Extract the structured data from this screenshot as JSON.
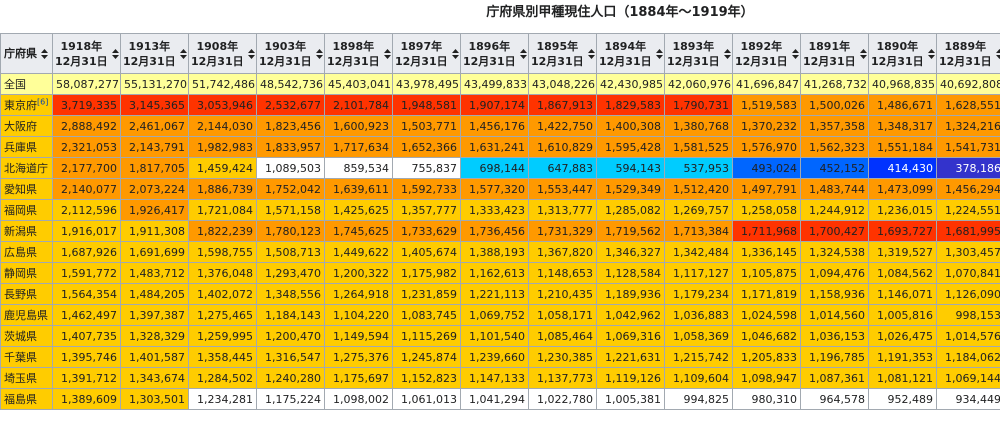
{
  "caption": "庁府県別甲種現住人口（1884年〜1919年）",
  "header": {
    "pref_label": "庁府県",
    "year_cols": [
      {
        "year": "1918年",
        "date": "12月31日"
      },
      {
        "year": "1913年",
        "date": "12月31日"
      },
      {
        "year": "1908年",
        "date": "12月31日"
      },
      {
        "year": "1903年",
        "date": "12月31日"
      },
      {
        "year": "1898年",
        "date": "12月31日"
      },
      {
        "year": "1897年",
        "date": "12月31日"
      },
      {
        "year": "1896年",
        "date": "12月31日"
      },
      {
        "year": "1895年",
        "date": "12月31日"
      },
      {
        "year": "1894年",
        "date": "12月31日"
      },
      {
        "year": "1893年",
        "date": "12月31日"
      },
      {
        "year": "1892年",
        "date": "12月31日"
      },
      {
        "year": "1891年",
        "date": "12月31日"
      },
      {
        "year": "1890年",
        "date": "12月31日"
      },
      {
        "year": "1889年",
        "date": "12月31日"
      }
    ]
  },
  "colors": {
    "total": "#ffff99",
    "o": "#ff9900",
    "y": "#ffcc00",
    "r": "#ff3300",
    "w": "#ffffff",
    "c": "#00ccff",
    "b": "#0066ff",
    "d": "#0033ff",
    "k": "#3333cc",
    "pref_bg": "#ffcc00"
  },
  "rows": [
    {
      "pref": "全国",
      "pref_color": "total",
      "note": "",
      "values": [
        "58,087,277",
        "55,131,270",
        "51,742,486",
        "48,542,736",
        "45,403,041",
        "43,978,495",
        "43,499,833",
        "43,048,226",
        "42,430,985",
        "42,060,976",
        "41,696,847",
        "41,268,732",
        "40,968,835",
        "40,692,808"
      ],
      "colors": [
        "total",
        "total",
        "total",
        "total",
        "total",
        "total",
        "total",
        "total",
        "total",
        "total",
        "total",
        "total",
        "total",
        "total"
      ]
    },
    {
      "pref": "東京府",
      "pref_color": "y",
      "note": "[6]",
      "values": [
        "3,719,335",
        "3,145,365",
        "3,053,946",
        "2,532,677",
        "2,101,784",
        "1,948,581",
        "1,907,174",
        "1,867,913",
        "1,829,583",
        "1,790,731",
        "1,519,583",
        "1,500,026",
        "1,486,671",
        "1,628,551"
      ],
      "colors": [
        "r",
        "r",
        "r",
        "r",
        "r",
        "r",
        "r",
        "r",
        "r",
        "r",
        "o",
        "o",
        "o",
        "o"
      ]
    },
    {
      "pref": "大阪府",
      "pref_color": "y",
      "note": "",
      "values": [
        "2,888,492",
        "2,461,067",
        "2,144,030",
        "1,823,456",
        "1,600,923",
        "1,503,771",
        "1,456,176",
        "1,422,750",
        "1,400,308",
        "1,380,768",
        "1,370,232",
        "1,357,358",
        "1,348,317",
        "1,324,216"
      ],
      "colors": [
        "o",
        "o",
        "o",
        "o",
        "o",
        "o",
        "o",
        "o",
        "o",
        "o",
        "o",
        "o",
        "o",
        "o"
      ]
    },
    {
      "pref": "兵庫県",
      "pref_color": "y",
      "note": "",
      "values": [
        "2,321,053",
        "2,143,791",
        "1,982,983",
        "1,833,957",
        "1,717,634",
        "1,652,366",
        "1,631,241",
        "1,610,829",
        "1,595,428",
        "1,581,525",
        "1,576,970",
        "1,562,323",
        "1,551,184",
        "1,541,731"
      ],
      "colors": [
        "o",
        "o",
        "o",
        "o",
        "o",
        "o",
        "o",
        "o",
        "o",
        "o",
        "o",
        "o",
        "o",
        "o"
      ]
    },
    {
      "pref": "北海道庁",
      "pref_color": "y",
      "note": "",
      "values": [
        "2,177,700",
        "1,817,705",
        "1,459,424",
        "1,089,503",
        "859,534",
        "755,837",
        "698,144",
        "647,883",
        "594,143",
        "537,953",
        "493,024",
        "452,152",
        "414,430",
        "378,186"
      ],
      "colors": [
        "o",
        "o",
        "y",
        "w",
        "w",
        "w",
        "c",
        "c",
        "c",
        "c",
        "b",
        "b",
        "d",
        "k"
      ]
    },
    {
      "pref": "愛知県",
      "pref_color": "y",
      "note": "",
      "values": [
        "2,140,077",
        "2,073,224",
        "1,886,739",
        "1,752,042",
        "1,639,611",
        "1,592,733",
        "1,577,320",
        "1,553,447",
        "1,529,349",
        "1,512,420",
        "1,497,791",
        "1,483,744",
        "1,473,099",
        "1,456,294"
      ],
      "colors": [
        "o",
        "o",
        "o",
        "o",
        "o",
        "o",
        "o",
        "o",
        "o",
        "o",
        "o",
        "o",
        "o",
        "o"
      ]
    },
    {
      "pref": "福岡県",
      "pref_color": "y",
      "note": "",
      "values": [
        "2,112,596",
        "1,926,417",
        "1,721,084",
        "1,571,158",
        "1,425,625",
        "1,357,777",
        "1,333,423",
        "1,313,777",
        "1,285,082",
        "1,269,757",
        "1,258,058",
        "1,244,912",
        "1,236,015",
        "1,224,551"
      ],
      "colors": [
        "y",
        "o",
        "y",
        "y",
        "y",
        "y",
        "y",
        "y",
        "y",
        "y",
        "y",
        "y",
        "y",
        "y"
      ]
    },
    {
      "pref": "新潟県",
      "pref_color": "y",
      "note": "",
      "values": [
        "1,916,017",
        "1,911,308",
        "1,822,239",
        "1,780,123",
        "1,745,625",
        "1,733,629",
        "1,736,456",
        "1,731,329",
        "1,719,562",
        "1,713,384",
        "1,711,968",
        "1,700,427",
        "1,693,727",
        "1,681,995"
      ],
      "colors": [
        "y",
        "y",
        "o",
        "o",
        "o",
        "o",
        "o",
        "o",
        "o",
        "o",
        "r",
        "r",
        "r",
        "r"
      ]
    },
    {
      "pref": "広島県",
      "pref_color": "y",
      "note": "",
      "values": [
        "1,687,926",
        "1,691,699",
        "1,598,755",
        "1,508,713",
        "1,449,622",
        "1,405,674",
        "1,388,193",
        "1,367,820",
        "1,346,327",
        "1,342,484",
        "1,336,145",
        "1,324,538",
        "1,319,527",
        "1,303,457"
      ],
      "colors": [
        "y",
        "y",
        "y",
        "y",
        "y",
        "y",
        "y",
        "y",
        "y",
        "y",
        "y",
        "y",
        "y",
        "y"
      ]
    },
    {
      "pref": "静岡県",
      "pref_color": "y",
      "note": "",
      "values": [
        "1,591,772",
        "1,483,712",
        "1,376,048",
        "1,293,470",
        "1,200,322",
        "1,175,982",
        "1,162,613",
        "1,148,653",
        "1,128,584",
        "1,117,127",
        "1,105,875",
        "1,094,476",
        "1,084,562",
        "1,070,841"
      ],
      "colors": [
        "y",
        "y",
        "y",
        "y",
        "y",
        "y",
        "y",
        "y",
        "y",
        "y",
        "y",
        "y",
        "y",
        "y"
      ]
    },
    {
      "pref": "長野県",
      "pref_color": "y",
      "note": "",
      "values": [
        "1,564,354",
        "1,484,205",
        "1,402,072",
        "1,348,556",
        "1,264,918",
        "1,231,859",
        "1,221,113",
        "1,210,435",
        "1,189,936",
        "1,179,234",
        "1,171,819",
        "1,158,936",
        "1,146,071",
        "1,126,090"
      ],
      "colors": [
        "y",
        "y",
        "y",
        "y",
        "y",
        "y",
        "y",
        "y",
        "y",
        "y",
        "y",
        "y",
        "y",
        "y"
      ]
    },
    {
      "pref": "鹿児島県",
      "pref_color": "y",
      "note": "",
      "values": [
        "1,462,497",
        "1,397,387",
        "1,275,465",
        "1,184,143",
        "1,104,220",
        "1,083,745",
        "1,069,752",
        "1,058,171",
        "1,042,962",
        "1,036,883",
        "1,024,598",
        "1,014,560",
        "1,005,816",
        "998,153"
      ],
      "colors": [
        "y",
        "y",
        "y",
        "y",
        "y",
        "y",
        "y",
        "y",
        "y",
        "y",
        "y",
        "y",
        "y",
        "y"
      ]
    },
    {
      "pref": "茨城県",
      "pref_color": "y",
      "note": "",
      "values": [
        "1,407,735",
        "1,328,329",
        "1,259,995",
        "1,200,470",
        "1,149,594",
        "1,115,269",
        "1,101,540",
        "1,085,464",
        "1,069,316",
        "1,058,369",
        "1,046,682",
        "1,036,153",
        "1,026,475",
        "1,014,576"
      ],
      "colors": [
        "y",
        "y",
        "y",
        "y",
        "y",
        "y",
        "y",
        "y",
        "y",
        "y",
        "y",
        "y",
        "y",
        "y"
      ]
    },
    {
      "pref": "千葉県",
      "pref_color": "y",
      "note": "",
      "values": [
        "1,395,746",
        "1,401,587",
        "1,358,445",
        "1,316,547",
        "1,275,376",
        "1,245,874",
        "1,239,660",
        "1,230,385",
        "1,221,631",
        "1,215,742",
        "1,205,833",
        "1,196,785",
        "1,191,353",
        "1,184,062"
      ],
      "colors": [
        "y",
        "y",
        "y",
        "y",
        "y",
        "y",
        "y",
        "y",
        "y",
        "y",
        "y",
        "y",
        "y",
        "y"
      ]
    },
    {
      "pref": "埼玉県",
      "pref_color": "y",
      "note": "",
      "values": [
        "1,391,712",
        "1,343,674",
        "1,284,502",
        "1,240,280",
        "1,175,697",
        "1,152,823",
        "1,147,133",
        "1,137,773",
        "1,119,126",
        "1,109,604",
        "1,098,947",
        "1,087,361",
        "1,081,121",
        "1,069,144"
      ],
      "colors": [
        "y",
        "y",
        "y",
        "y",
        "y",
        "y",
        "y",
        "y",
        "y",
        "y",
        "y",
        "y",
        "y",
        "y"
      ]
    },
    {
      "pref": "福島県",
      "pref_color": "y",
      "note": "",
      "values": [
        "1,389,609",
        "1,303,501",
        "1,234,281",
        "1,175,224",
        "1,098,002",
        "1,061,013",
        "1,041,294",
        "1,022,780",
        "1,005,381",
        "994,825",
        "980,310",
        "964,578",
        "952,489",
        "934,449"
      ],
      "colors": [
        "y",
        "y",
        "w",
        "w",
        "w",
        "w",
        "w",
        "w",
        "w",
        "w",
        "w",
        "w",
        "w",
        "w"
      ]
    }
  ]
}
